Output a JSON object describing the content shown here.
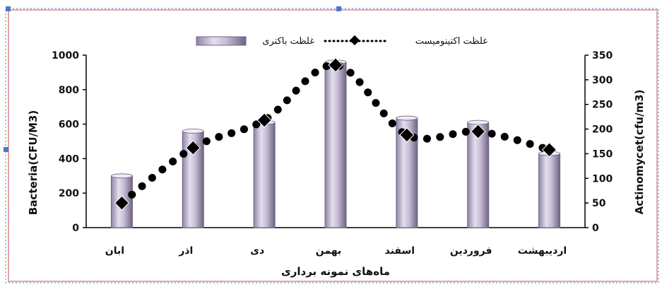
{
  "chart_data": {
    "type": "bar",
    "categories": [
      "ابان",
      "اذر",
      "دی",
      "بهمن",
      "اسفند",
      "فروردین",
      "اردیبهشت"
    ],
    "series": [
      {
        "name": "غلظت باکتری",
        "type": "bar",
        "axis": "left",
        "values": [
          300,
          560,
          610,
          960,
          635,
          610,
          430
        ]
      },
      {
        "name": "غلظت اکتینومیست",
        "type": "line",
        "axis": "right",
        "style": "dotted-with-diamond-markers",
        "values": [
          50,
          162,
          218,
          330,
          188,
          195,
          158
        ]
      }
    ],
    "xlabel": "ماه‌های نمونه برداری",
    "ylabel": "Bacteria(CFU/M3)",
    "ylabel_right": "Actinomycet(cfu/m3)",
    "ylim": [
      0,
      1000
    ],
    "yticks": [
      0,
      200,
      400,
      600,
      800,
      1000
    ],
    "ylim_right": [
      0,
      350
    ],
    "yticks_right": [
      0,
      50,
      100,
      150,
      200,
      250,
      300,
      350
    ],
    "grid": false,
    "legend": "top",
    "colors": {
      "bar": "#b8aec8",
      "bar_dark": "#6e6482",
      "line": "#000000"
    }
  }
}
